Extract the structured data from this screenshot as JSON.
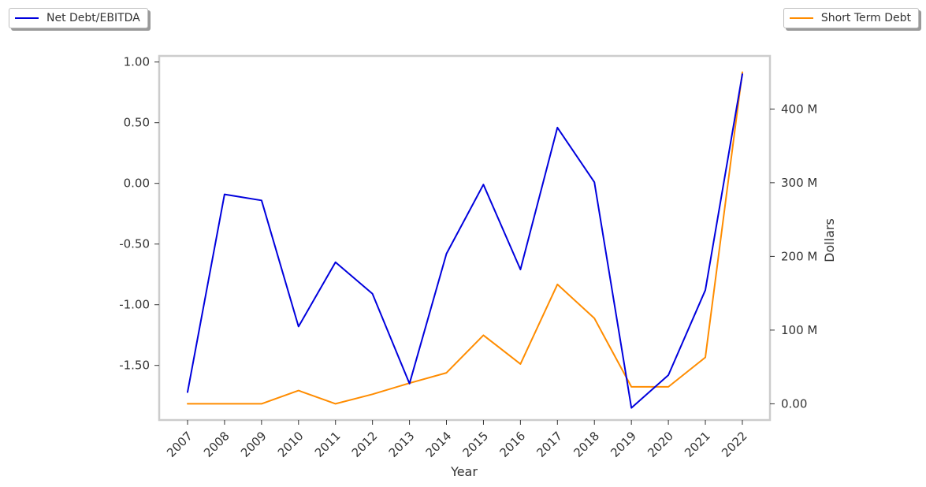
{
  "chart_data": {
    "type": "line",
    "xlabel": "Year",
    "ylabel_left": "",
    "ylabel_right": "Dollars",
    "categories": [
      "2007",
      "2008",
      "2009",
      "2010",
      "2011",
      "2012",
      "2013",
      "2014",
      "2015",
      "2016",
      "2017",
      "2018",
      "2019",
      "2020",
      "2021",
      "2022"
    ],
    "left_axis": {
      "ylim": [
        -1.95,
        1.05
      ],
      "ticks": [
        -1.5,
        -1.0,
        -0.5,
        0.0,
        0.5,
        1.0
      ],
      "tick_labels": [
        "-1.50",
        "-1.00",
        "-0.50",
        "0.00",
        "0.50",
        "1.00"
      ]
    },
    "right_axis": {
      "ylim": [
        -22,
        472
      ],
      "ticks": [
        0,
        100,
        200,
        300,
        400
      ],
      "tick_labels": [
        "0.00",
        "100 M",
        "200 M",
        "300 M",
        "400 M"
      ],
      "unit": "M"
    },
    "series": [
      {
        "name": "Net Debt/EBITDA",
        "axis": "left",
        "color": "#0000dd",
        "values": [
          -1.72,
          -0.09,
          -0.14,
          -1.18,
          -0.65,
          -0.91,
          -1.65,
          -0.58,
          -0.01,
          -0.71,
          0.46,
          0.01,
          -1.85,
          -1.58,
          -0.88,
          0.9
        ]
      },
      {
        "name": "Short Term Debt",
        "axis": "right",
        "color": "#ff8c00",
        "values": [
          0,
          0,
          0,
          18,
          0,
          13,
          28,
          42,
          93,
          54,
          162,
          116,
          23,
          23,
          63,
          450
        ]
      }
    ],
    "grid": false,
    "legend_placement": [
      "top-left",
      "top-right"
    ]
  }
}
